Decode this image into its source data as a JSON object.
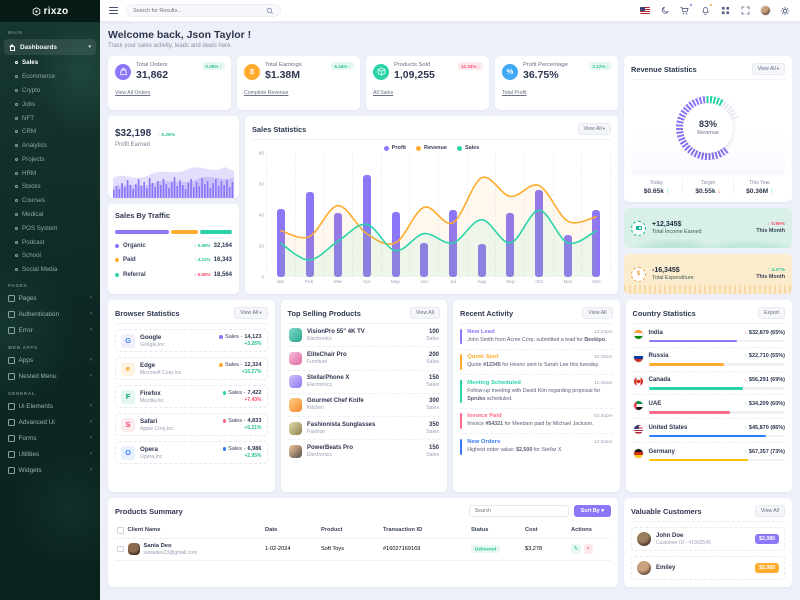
{
  "brand": {
    "name": "rixzo"
  },
  "topbar": {
    "search_placeholder": "Search for Results...",
    "icons": [
      "us-flag-icon",
      "moon-icon",
      "cart-icon",
      "bell-icon",
      "grid-icon",
      "fullscreen-icon",
      "avatar",
      "gear-icon"
    ]
  },
  "welcome": {
    "title": "Welcome back, Json Taylor !",
    "subtitle": "Track your sales activity, leads and deals here."
  },
  "stat_cards": [
    {
      "title": "Total Orders",
      "value": "31,862",
      "change": "0.25%",
      "trend": "up",
      "link": "View All Orders",
      "icon": "bag-icon",
      "color": "#8d76f7"
    },
    {
      "title": "Total Earnings",
      "value": "$1.38M",
      "change": "5.44%",
      "trend": "up",
      "link": "Complete Revenue",
      "icon": "dollar-icon",
      "color": "#ffab2e"
    },
    {
      "title": "Products Sold",
      "value": "1,09,255",
      "change": "12.34%",
      "trend": "down",
      "link": "All Sales",
      "icon": "box-icon",
      "color": "#2bd4a8"
    },
    {
      "title": "Profit Percentage",
      "value": "36.75%",
      "change": "2.12%",
      "trend": "up",
      "link": "Total Profit",
      "icon": "percent-icon",
      "color": "#41a8f5"
    }
  ],
  "profit_card": {
    "value": "$32,198",
    "change": "0.25%",
    "trend": "up",
    "label": "Profit Earned"
  },
  "sales_by_traffic": {
    "title": "Sales By Traffic",
    "rows": [
      {
        "label": "Organic",
        "color": "#8d76f7",
        "change": "0.98%",
        "trend": "up",
        "value": "32,164",
        "share": 48
      },
      {
        "label": "Paid",
        "color": "#ffab2e",
        "change": "4.22%",
        "trend": "up",
        "value": "16,343",
        "share": 24
      },
      {
        "label": "Referral",
        "color": "#2bd4a8",
        "change": "6.88%",
        "trend": "down",
        "value": "18,564",
        "share": 28
      }
    ]
  },
  "sales_statistics": {
    "title": "Sales Statistics",
    "view_all": "View All",
    "caret": true,
    "chart_data": {
      "type": "bar+line",
      "categories": [
        "Jan",
        "Feb",
        "Mar",
        "Apr",
        "May",
        "Jun",
        "Jul",
        "Aug",
        "Sep",
        "Oct",
        "Nov",
        "Dec"
      ],
      "series": [
        {
          "name": "Profit",
          "type": "bar",
          "color": "#8d76f7",
          "values": [
            44,
            55,
            41,
            66,
            42,
            22,
            43,
            21,
            41,
            56,
            27,
            43
          ]
        },
        {
          "name": "Revenue",
          "type": "line",
          "color": "#ffab2e",
          "values": [
            30,
            26,
            46,
            28,
            22,
            45,
            35,
            64,
            52,
            59,
            36,
            39
          ]
        },
        {
          "name": "Sales",
          "type": "line",
          "color": "#2bd4a8",
          "values": [
            22,
            11,
            23,
            34,
            17,
            28,
            22,
            37,
            22,
            43,
            22,
            30
          ]
        }
      ],
      "ylim": [
        0,
        80
      ],
      "yticks": [
        0,
        20,
        40,
        60,
        80
      ]
    }
  },
  "revenue_statistics": {
    "title": "Revenue Statistics",
    "view_all": "View All",
    "gauge_value": "83%",
    "gauge_label": "Revenue",
    "stats": [
      {
        "label": "Today",
        "value": "$0.65k",
        "trend": "up"
      },
      {
        "label": "Target",
        "value": "$0.55k",
        "trend": "down"
      },
      {
        "label": "This Year",
        "value": "$0.36M",
        "trend": "up"
      }
    ]
  },
  "income_card": {
    "value": "+12,345$",
    "label": "Total Income Earned",
    "change": "0.96%",
    "trend": "down",
    "period": "This Month",
    "icon": "wallet-icon"
  },
  "expenditure_card": {
    "value": "-16,345$",
    "label": "Total Expenditure",
    "change": "4.27%",
    "trend": "up",
    "period": "This Month",
    "icon": "coins-icon"
  },
  "browser_statistics": {
    "title": "Browser Statistics",
    "view_all": "View All",
    "caret": true,
    "sales_prefix": "Sales -",
    "rows": [
      {
        "name": "Google",
        "company": "Google,Inc",
        "sales": "14,123",
        "change": "+3.26%",
        "change_tone": "green",
        "dot": "#8d76f7",
        "letter": "G",
        "icon_bg": "#eef0fe",
        "icon_fg": "#4285f4"
      },
      {
        "name": "Edge",
        "company": "Microsoft Corp,Inc",
        "sales": "12,324",
        "change": "+15.27%",
        "change_tone": "green",
        "dot": "#ffab2e",
        "letter": "e",
        "icon_bg": "#fef3e2",
        "icon_fg": "#f59f00"
      },
      {
        "name": "Firefox",
        "company": "Mozilla,Inc",
        "sales": "7,422",
        "change": "+7.43%",
        "change_tone": "red",
        "dot": "#2bd4a8",
        "letter": "F",
        "icon_bg": "#e3f7ef",
        "icon_fg": "#0ca678"
      },
      {
        "name": "Safari",
        "company": "Apple Corp,Inc",
        "sales": "4,833",
        "change": "+5.21%",
        "change_tone": "green",
        "dot": "#fd6a88",
        "letter": "S",
        "icon_bg": "#fdecef",
        "icon_fg": "#f03e5e"
      },
      {
        "name": "Opera",
        "company": "Opera,Inc",
        "sales": "6,986",
        "change": "+2.95%",
        "change_tone": "green",
        "dot": "#3a7af5",
        "letter": "O",
        "icon_bg": "#e8f0fe",
        "icon_fg": "#3b82f6"
      }
    ]
  },
  "top_selling": {
    "title": "Top Selling Products",
    "view_all": "View All",
    "sales_suffix": "Sales",
    "rows": [
      {
        "name": "VisionPro 55\" 4K TV",
        "category": "Electronics",
        "sales": "100",
        "img": [
          "#7fd8c8",
          "#2ba88f"
        ]
      },
      {
        "name": "EliteChair Pro",
        "category": "Furniture",
        "sales": "200",
        "img": [
          "#f8bcd8",
          "#e06ba6"
        ]
      },
      {
        "name": "StellarPhone X",
        "category": "Electronics",
        "sales": "150",
        "img": [
          "#cfc2f4",
          "#8d76f7"
        ]
      },
      {
        "name": "Gourmet Chef Knife",
        "category": "Kitchen",
        "sales": "300",
        "img": [
          "#ffd28a",
          "#f2892c"
        ]
      },
      {
        "name": "Fashionista Sunglasses",
        "category": "Fashion",
        "sales": "350",
        "img": [
          "#e4dcae",
          "#8b7f4a"
        ]
      },
      {
        "name": "PowerBeats Pro",
        "category": "Electronics",
        "sales": "150",
        "img": [
          "#f6c89e",
          "#544e4a"
        ]
      }
    ]
  },
  "recent_activity": {
    "title": "Recent Activity",
    "view_all": "View All",
    "items": [
      {
        "title": "New Lead",
        "time": "12:24pm",
        "color": "#8d76f7",
        "desc": [
          {
            "text": "John Smith from Acme Corp. submitted a lead for "
          },
          {
            "text": "Beekipo.",
            "bold": true
          }
        ]
      },
      {
        "title": "Quote Sent",
        "time": "10:18am",
        "color": "#ffab2e",
        "desc": [
          {
            "text": "Quote "
          },
          {
            "text": "#12345",
            "bold": true
          },
          {
            "text": " for Hexno sent to Sarah Lee this tuesday."
          }
        ]
      },
      {
        "title": "Meeting Scheduled",
        "time": "11:45am",
        "color": "#2bd4a8",
        "desc": [
          {
            "text": "Follow-up meeting with David Kim regarding proposal for "
          },
          {
            "text": "Spruko",
            "bold": true
          },
          {
            "text": " scheduled."
          }
        ]
      },
      {
        "title": "Invoice Paid",
        "time": "04:30pm",
        "color": "#fd6a88",
        "desc": [
          {
            "text": "Invoice "
          },
          {
            "text": "#54321",
            "bold": true
          },
          {
            "text": " for Meebam paid by Michael Jackson."
          }
        ]
      },
      {
        "title": "New Orders",
        "time": "12:23am",
        "color": "#3a7af5",
        "desc": [
          {
            "text": "Highest order value: "
          },
          {
            "text": "$2,500",
            "bold": true
          },
          {
            "text": " for Stellar X"
          }
        ]
      }
    ]
  },
  "country_statistics": {
    "title": "Country Statistics",
    "export_label": "Export",
    "rows": [
      {
        "country": "India",
        "flag": "in",
        "amount": "$32,879",
        "pct": "(65%)",
        "trend": "down",
        "bar_color": "#8d76f7",
        "bar": 65
      },
      {
        "country": "Russia",
        "flag": "ru",
        "amount": "$22,710",
        "pct": "(55%)",
        "trend": "up",
        "bar_color": "#ffab2e",
        "bar": 55
      },
      {
        "country": "Canada",
        "flag": "ca",
        "amount": "$56,291",
        "pct": "(69%)",
        "trend": "down",
        "bar_color": "#2bd4a8",
        "bar": 69
      },
      {
        "country": "UAE",
        "flag": "ae",
        "amount": "$34,209",
        "pct": "(60%)",
        "trend": "up",
        "bar_color": "#fd6a88",
        "bar": 60
      },
      {
        "country": "United States",
        "flag": "us",
        "amount": "$45,870",
        "pct": "(86%)",
        "trend": "up",
        "bar_color": "#2b7ffc",
        "bar": 86
      },
      {
        "country": "Germany",
        "flag": "de",
        "amount": "$67,357",
        "pct": "(73%)",
        "trend": "up",
        "bar_color": "#ffc107",
        "bar": 73
      }
    ]
  },
  "products_summary": {
    "title": "Products Summary",
    "search_placeholder": "Search",
    "sort_label": "Sort By",
    "columns": [
      "Client Name",
      "Date",
      "Product",
      "Transaction ID",
      "Status",
      "Cost",
      "Actions"
    ],
    "rows": [
      {
        "client": "Sania Deo",
        "email": "saniadeo23@gmail.com",
        "date": "1-02-2024",
        "product": "Soft Toys",
        "transaction_id": "#16027169169",
        "status": "Delivered",
        "cost": "$3,278"
      }
    ]
  },
  "valuable_customers": {
    "title": "Valuable Customers",
    "view_all": "View All",
    "rows": [
      {
        "name": "John Doe",
        "customer_id": "Customer ID - #1902545",
        "amount": "$2,080",
        "badge_color": "#8d76f7",
        "avatar": [
          "#9a7d5c",
          "#3c2f24"
        ]
      },
      {
        "name": "Emiley",
        "customer_id": "",
        "amount": "$2,060",
        "badge_color": "#ffab2e",
        "avatar": [
          "#caa17c",
          "#5d4033"
        ]
      }
    ]
  },
  "sidebar": {
    "sections": [
      {
        "label": "Main",
        "items": [
          {
            "label": "Dashboards",
            "icon": "home-icon",
            "expanded": true,
            "active": true,
            "children": [
              "Sales",
              "Ecommerce",
              "Crypto",
              "Jobs",
              "NFT",
              "CRM",
              "Analytics",
              "Projects",
              "HRM",
              "Stocks",
              "Courses",
              "Medical",
              "POS System",
              "Podcast",
              "School",
              "Social Media"
            ],
            "active_child": "Sales"
          }
        ]
      },
      {
        "label": "Pages",
        "items": [
          {
            "label": "Pages",
            "icon": "file-icon"
          },
          {
            "label": "Authentication",
            "icon": "lock-icon"
          },
          {
            "label": "Error",
            "icon": "error-icon"
          }
        ]
      },
      {
        "label": "Web Apps",
        "items": [
          {
            "label": "Apps",
            "icon": "apps-icon"
          },
          {
            "label": "Nested Menu",
            "icon": "nested-menu-icon"
          }
        ]
      },
      {
        "label": "General",
        "items": [
          {
            "label": "Ui Elements",
            "icon": "ui-elements-icon"
          },
          {
            "label": "Advanced Ui",
            "icon": "advanced-ui-icon"
          },
          {
            "label": "Forms",
            "icon": "forms-icon"
          },
          {
            "label": "Utilities",
            "icon": "utilities-icon"
          },
          {
            "label": "Widgets",
            "icon": "widgets-icon"
          }
        ]
      }
    ]
  }
}
